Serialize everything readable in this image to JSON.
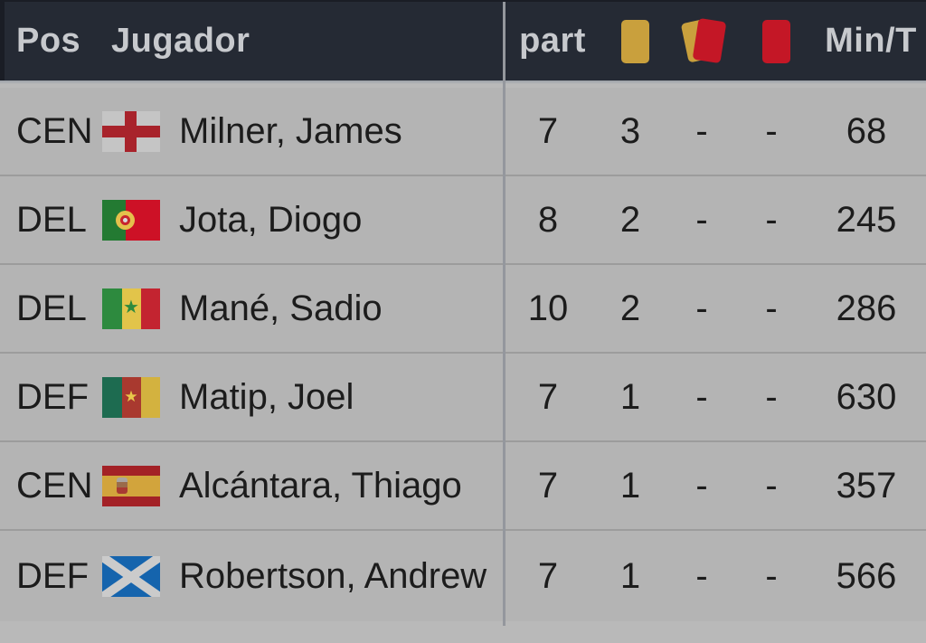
{
  "app": {
    "type": "player-statistics-table"
  },
  "colors": {
    "header_bg": "#252a34",
    "header_text": "#c7c9cd",
    "row_bg": "#b4b4b4",
    "row_text": "#1c1c1c",
    "separator": "#9c9c9c",
    "divider": "#94979d",
    "yellow_card": "#c9a03d",
    "red_card": "#c41726"
  },
  "header": {
    "pos_label": "Pos",
    "player_label": "Jugador",
    "appearances_label": "part",
    "minutes_label": "Min/T",
    "card_icons": [
      {
        "name": "yellow-card-icon"
      },
      {
        "name": "yellow-red-card-icon"
      },
      {
        "name": "red-card-icon"
      }
    ]
  },
  "rows": [
    {
      "pos": "CEN",
      "flag": "england",
      "player": "Milner, James",
      "appearances": "7",
      "yellow_cards": "3",
      "yellow_red_cards": "-",
      "red_cards": "-",
      "minutes": "68"
    },
    {
      "pos": "DEL",
      "flag": "portugal",
      "player": "Jota, Diogo",
      "appearances": "8",
      "yellow_cards": "2",
      "yellow_red_cards": "-",
      "red_cards": "-",
      "minutes": "245"
    },
    {
      "pos": "DEL",
      "flag": "senegal",
      "player": "Mané, Sadio",
      "appearances": "10",
      "yellow_cards": "2",
      "yellow_red_cards": "-",
      "red_cards": "-",
      "minutes": "286"
    },
    {
      "pos": "DEF",
      "flag": "cameroon",
      "player": "Matip, Joel",
      "appearances": "7",
      "yellow_cards": "1",
      "yellow_red_cards": "-",
      "red_cards": "-",
      "minutes": "630"
    },
    {
      "pos": "CEN",
      "flag": "spain",
      "player": "Alcántara, Thiago",
      "appearances": "7",
      "yellow_cards": "1",
      "yellow_red_cards": "-",
      "red_cards": "-",
      "minutes": "357"
    },
    {
      "pos": "DEF",
      "flag": "scotland",
      "player": "Robertson, Andrew",
      "appearances": "7",
      "yellow_cards": "1",
      "yellow_red_cards": "-",
      "red_cards": "-",
      "minutes": "566"
    }
  ]
}
